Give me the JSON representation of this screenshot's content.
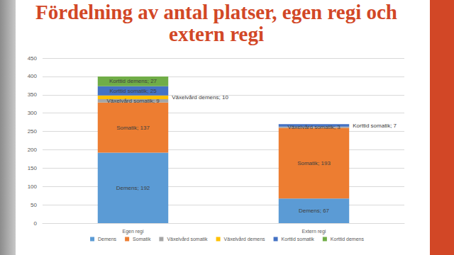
{
  "chart_data": {
    "type": "bar",
    "title": "Fördelning av antal platser, egen regi och extern regi",
    "categories": [
      "Egen regi",
      "Extern regi"
    ],
    "stacked": true,
    "data_labels": true,
    "grid": true,
    "legend": "bottom",
    "ylim": [
      0,
      450
    ],
    "yticks": [
      0,
      50,
      100,
      150,
      200,
      250,
      300,
      350,
      400,
      450
    ],
    "series": [
      {
        "name": "Demens",
        "color": "#5B9BD5",
        "values": [
          192,
          67
        ],
        "value_labels": [
          "Demens; 192",
          "Demens; 67"
        ]
      },
      {
        "name": "Somatik",
        "color": "#ED7D31",
        "values": [
          137,
          193
        ],
        "value_labels": [
          "Somatik; 137",
          "Somatik; 193"
        ]
      },
      {
        "name": "Växelvård somatik",
        "color": "#A5A5A5",
        "values": [
          9,
          3
        ],
        "value_labels": [
          "Växelvård somatik; 9",
          "Växelvård somatik; 3"
        ]
      },
      {
        "name": "Växelvård demens",
        "color": "#FFC000",
        "values": [
          10,
          null
        ],
        "value_labels": [
          "Växelvård demens; 10",
          null
        ]
      },
      {
        "name": "Korttid somatik",
        "color": "#4472C4",
        "values": [
          25,
          7
        ],
        "value_labels": [
          "Korttid somatik; 25",
          "Korttid somatik; 7"
        ]
      },
      {
        "name": "Korttid demens",
        "color": "#70AD47",
        "values": [
          27,
          null
        ],
        "value_labels": [
          "Korttid demens; 27",
          null
        ]
      }
    ]
  }
}
